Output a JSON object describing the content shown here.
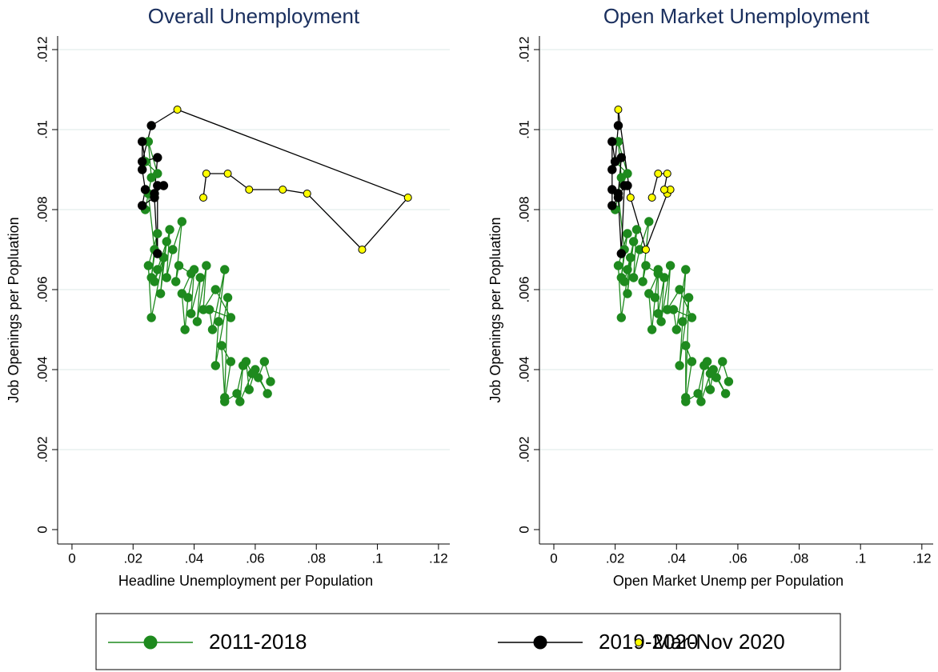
{
  "chart_data": [
    {
      "type": "scatter",
      "title": "Overall Unemployment",
      "x_label": "Headline Unemployment per Population",
      "y_label": "Job Openings per Popluation",
      "xlim": [
        -0.0047,
        0.1237
      ],
      "ylim": [
        -0.00036,
        0.01234
      ],
      "xticks": [
        0,
        {
          "value": 0.02,
          "label": ".02"
        },
        {
          "value": 0.04,
          "label": ".04"
        },
        {
          "value": 0.06,
          "label": ".06"
        },
        {
          "value": 0.08,
          "label": ".08"
        },
        {
          "value": 0.1,
          "label": ".1"
        },
        {
          "value": 0.12,
          "label": ".12"
        }
      ],
      "yticks": [
        0,
        {
          "value": 0.002,
          "label": ".002"
        },
        {
          "value": 0.004,
          "label": ".004"
        },
        {
          "value": 0.006,
          "label": ".006"
        },
        {
          "value": 0.008,
          "label": ".008"
        },
        {
          "value": 0.01,
          "label": ".01"
        },
        {
          "value": 0.012,
          "label": ".012"
        }
      ],
      "grid": true,
      "legend": "bottom",
      "series": [
        {
          "name": "2011-2018",
          "color": "#1e8a1e",
          "line_color": "#1e8a1e",
          "connected": true,
          "x": [
            0.065,
            0.063,
            0.061,
            0.064,
            0.06,
            0.058,
            0.057,
            0.059,
            0.055,
            0.056,
            0.054,
            0.05,
            0.052,
            0.049,
            0.05,
            0.051,
            0.047,
            0.048,
            0.05,
            0.046,
            0.045,
            0.052,
            0.047,
            0.043,
            0.044,
            0.041,
            0.042,
            0.039,
            0.04,
            0.038,
            0.037,
            0.036,
            0.039,
            0.035,
            0.034,
            0.036,
            0.033,
            0.031,
            0.032,
            0.03,
            0.029,
            0.031,
            0.028,
            0.027,
            0.03,
            0.026,
            0.025,
            0.028,
            0.026,
            0.027,
            0.025,
            0.024,
            0.026,
            0.025,
            0.028,
            0.024
          ],
          "values": [
            0.0037,
            0.0042,
            0.0038,
            0.0034,
            0.004,
            0.0035,
            0.0042,
            0.0039,
            0.0032,
            0.0041,
            0.0034,
            0.0032,
            0.0042,
            0.0046,
            0.0033,
            0.0058,
            0.0041,
            0.0052,
            0.0065,
            0.005,
            0.0055,
            0.0053,
            0.006,
            0.0055,
            0.0066,
            0.0052,
            0.0063,
            0.0054,
            0.0065,
            0.0058,
            0.005,
            0.0059,
            0.0064,
            0.0066,
            0.0062,
            0.0077,
            0.007,
            0.0063,
            0.0075,
            0.0068,
            0.0059,
            0.0072,
            0.0065,
            0.0062,
            0.0068,
            0.0053,
            0.0066,
            0.0074,
            0.0063,
            0.007,
            0.0084,
            0.008,
            0.0088,
            0.0097,
            0.0089,
            0.0092
          ]
        },
        {
          "name": "2019-2020",
          "color": "#000000",
          "line_color": "#000000",
          "connected": true,
          "connect_from_previous": true,
          "x": [
            0.023,
            0.023,
            0.024,
            0.023,
            0.027,
            0.028,
            0.028,
            0.03,
            0.027,
            0.028,
            0.023,
            0.026
          ],
          "values": [
            0.0097,
            0.009,
            0.0085,
            0.0081,
            0.0083,
            0.0069,
            0.0086,
            0.0086,
            0.0084,
            0.0093,
            0.0092,
            0.0101
          ]
        },
        {
          "name": "Mar-Nov 2020",
          "color": "#ffff00",
          "line_color": "#000000",
          "connected": true,
          "connect_from_previous": true,
          "legend_line": false,
          "x": [
            0.0345,
            0.11,
            0.095,
            0.077,
            0.069,
            0.058,
            0.051,
            0.044,
            0.043
          ],
          "values": [
            0.0105,
            0.0083,
            0.007,
            0.0084,
            0.0085,
            0.0085,
            0.0089,
            0.0089,
            0.0083
          ]
        }
      ]
    },
    {
      "type": "scatter",
      "title": "Open Market Unemployment",
      "x_label": "Open Market Unemp per Population",
      "y_label": "Job Openings per Popluation",
      "xlim": [
        -0.0047,
        0.1237
      ],
      "ylim": [
        -0.00036,
        0.01234
      ],
      "xticks": [
        0,
        {
          "value": 0.02,
          "label": ".02"
        },
        {
          "value": 0.04,
          "label": ".04"
        },
        {
          "value": 0.06,
          "label": ".06"
        },
        {
          "value": 0.08,
          "label": ".08"
        },
        {
          "value": 0.1,
          "label": ".1"
        },
        {
          "value": 0.12,
          "label": ".12"
        }
      ],
      "yticks": [
        0,
        {
          "value": 0.002,
          "label": ".002"
        },
        {
          "value": 0.004,
          "label": ".004"
        },
        {
          "value": 0.006,
          "label": ".006"
        },
        {
          "value": 0.008,
          "label": ".008"
        },
        {
          "value": 0.01,
          "label": ".01"
        },
        {
          "value": 0.012,
          "label": ".012"
        }
      ],
      "grid": true,
      "series": [
        {
          "name": "2011-2018",
          "color": "#1e8a1e",
          "line_color": "#1e8a1e",
          "connected": true,
          "x": [
            0.057,
            0.055,
            0.053,
            0.056,
            0.052,
            0.051,
            0.05,
            0.051,
            0.048,
            0.049,
            0.047,
            0.043,
            0.045,
            0.043,
            0.043,
            0.044,
            0.041,
            0.042,
            0.043,
            0.04,
            0.039,
            0.045,
            0.041,
            0.037,
            0.038,
            0.035,
            0.036,
            0.034,
            0.034,
            0.033,
            0.032,
            0.031,
            0.034,
            0.03,
            0.029,
            0.031,
            0.028,
            0.026,
            0.027,
            0.025,
            0.024,
            0.026,
            0.024,
            0.023,
            0.025,
            0.022,
            0.021,
            0.024,
            0.022,
            0.023,
            0.021,
            0.02,
            0.022,
            0.021,
            0.024,
            0.02
          ],
          "values": [
            0.0037,
            0.0042,
            0.0038,
            0.0034,
            0.004,
            0.0035,
            0.0042,
            0.0039,
            0.0032,
            0.0041,
            0.0034,
            0.0032,
            0.0042,
            0.0046,
            0.0033,
            0.0058,
            0.0041,
            0.0052,
            0.0065,
            0.005,
            0.0055,
            0.0053,
            0.006,
            0.0055,
            0.0066,
            0.0052,
            0.0063,
            0.0054,
            0.0065,
            0.0058,
            0.005,
            0.0059,
            0.0064,
            0.0066,
            0.0062,
            0.0077,
            0.007,
            0.0063,
            0.0075,
            0.0068,
            0.0059,
            0.0072,
            0.0065,
            0.0062,
            0.0068,
            0.0053,
            0.0066,
            0.0074,
            0.0063,
            0.007,
            0.0084,
            0.008,
            0.0088,
            0.0097,
            0.0089,
            0.0092
          ]
        },
        {
          "name": "2019-2020",
          "color": "#000000",
          "line_color": "#000000",
          "connected": true,
          "connect_from_previous": true,
          "x": [
            0.019,
            0.019,
            0.019,
            0.019,
            0.021,
            0.022,
            0.023,
            0.024,
            0.021,
            0.022,
            0.02,
            0.021
          ],
          "values": [
            0.0097,
            0.009,
            0.0085,
            0.0081,
            0.0083,
            0.0069,
            0.0086,
            0.0086,
            0.0084,
            0.0093,
            0.0092,
            0.0101
          ]
        },
        {
          "name": "Mar-Nov 2020",
          "color": "#ffff00",
          "line_color": "#000000",
          "connected": true,
          "connect_from_previous": true,
          "legend_line": false,
          "x": [
            0.021,
            0.025,
            0.03,
            0.037,
            0.038,
            0.036,
            0.037,
            0.034,
            0.032
          ],
          "values": [
            0.0105,
            0.0083,
            0.007,
            0.0084,
            0.0085,
            0.0085,
            0.0089,
            0.0089,
            0.0083
          ]
        }
      ]
    }
  ]
}
